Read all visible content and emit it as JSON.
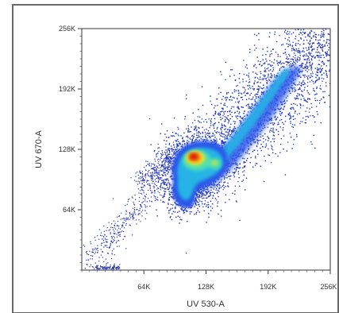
{
  "chart_data": {
    "type": "heatmap",
    "subtype": "flow-cytometry density dot plot",
    "xlabel": "UV 530-A",
    "ylabel": "UV 670-A",
    "xlim": [
      0,
      262144
    ],
    "ylim": [
      0,
      262144
    ],
    "x_ticks": [
      {
        "value": 65536,
        "label": "64K"
      },
      {
        "value": 131072,
        "label": "128K"
      },
      {
        "value": 196608,
        "label": "192K"
      },
      {
        "value": 262144,
        "label": "256K"
      }
    ],
    "y_ticks": [
      {
        "value": 65536,
        "label": "64K"
      },
      {
        "value": 131072,
        "label": "128K"
      },
      {
        "value": 196608,
        "label": "192K"
      },
      {
        "value": 262144,
        "label": "256K"
      }
    ],
    "colormap": [
      "#1f2fb8",
      "#2a56e8",
      "#27b4e6",
      "#4fe0b0",
      "#f2e12a",
      "#f07a10",
      "#d81a10"
    ],
    "density_regions": [
      {
        "description": "diagonal main population band",
        "x": [
          95000,
          262000
        ],
        "y": [
          75000,
          262000
        ],
        "level": "low-medium"
      },
      {
        "description": "diagonal ridge",
        "x": [
          135000,
          225000
        ],
        "y": [
          120000,
          220000
        ],
        "level": "medium"
      },
      {
        "description": "dense core",
        "center": [
          121000,
          122000
        ],
        "level": "peak"
      },
      {
        "description": "secondary core",
        "center": [
          140000,
          118000
        ],
        "level": "medium-high"
      },
      {
        "description": "lower lobe",
        "center": [
          110000,
          88000
        ],
        "level": "medium"
      },
      {
        "description": "sparse diagonal tail toward origin",
        "x": [
          5000,
          90000
        ],
        "y": [
          5000,
          110000
        ],
        "level": "very-low"
      }
    ]
  }
}
